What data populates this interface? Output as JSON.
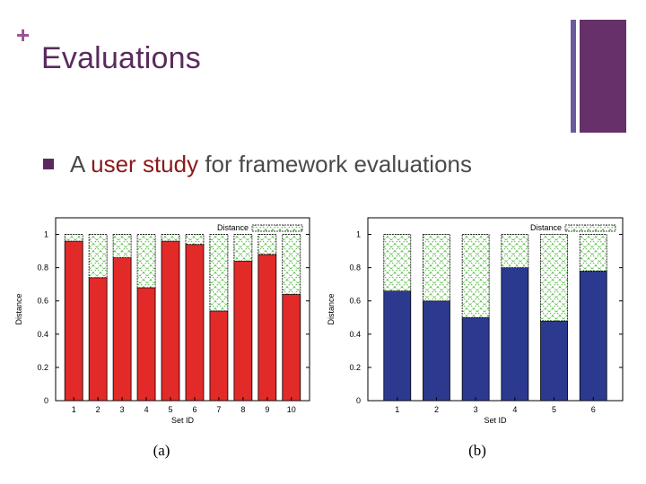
{
  "slide": {
    "title": "Evaluations",
    "plus": "+",
    "bullet_prefix": "A ",
    "bullet_highlight": "user study",
    "bullet_suffix": " for framework evaluations"
  },
  "colors": {
    "title": "#5a2a5e",
    "highlight": "#8b1a1a",
    "red_bar": "#e22a28",
    "blue_bar": "#2b3a8f",
    "distance_pattern": "#55bb44"
  },
  "chart_data": [
    {
      "type": "bar",
      "stacked": true,
      "caption": "(a)",
      "categories": [
        "1",
        "2",
        "3",
        "4",
        "5",
        "6",
        "7",
        "8",
        "9",
        "10"
      ],
      "series": [
        {
          "name": "",
          "color": "#e22a28",
          "values": [
            0.96,
            0.74,
            0.86,
            0.68,
            0.96,
            0.94,
            0.54,
            0.84,
            0.88,
            0.64
          ]
        },
        {
          "name": "Distance",
          "pattern": "green-x-hatch",
          "values": [
            0.04,
            0.26,
            0.14,
            0.32,
            0.04,
            0.06,
            0.46,
            0.16,
            0.12,
            0.36
          ]
        }
      ],
      "xlabel": "Set ID",
      "ylabel": "Distance",
      "ylim": [
        0,
        1.1
      ],
      "yticks": [
        "0",
        "0.2",
        "0.4",
        "0.6",
        "0.8",
        "1"
      ],
      "legend": "top-right",
      "grid": false
    },
    {
      "type": "bar",
      "stacked": true,
      "caption": "(b)",
      "categories": [
        "1",
        "2",
        "3",
        "4",
        "5",
        "6"
      ],
      "series": [
        {
          "name": "",
          "color": "#2b3a8f",
          "values": [
            0.66,
            0.6,
            0.5,
            0.8,
            0.48,
            0.78
          ]
        },
        {
          "name": "Distance",
          "pattern": "green-x-hatch",
          "values": [
            0.34,
            0.4,
            0.5,
            0.2,
            0.52,
            0.22
          ]
        }
      ],
      "xlabel": "Set ID",
      "ylabel": "Distance",
      "ylim": [
        0,
        1.1
      ],
      "yticks": [
        "0",
        "0.2",
        "0.4",
        "0.6",
        "0.8",
        "1"
      ],
      "legend": "top-right",
      "grid": false
    }
  ]
}
